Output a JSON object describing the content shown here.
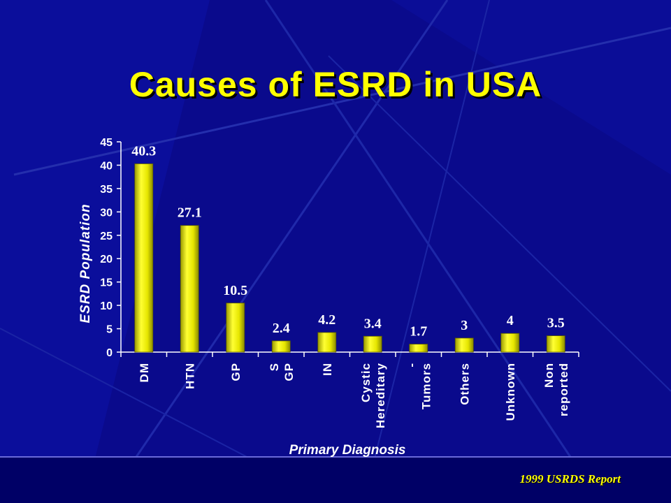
{
  "slide": {
    "title": "Causes of ESRD in USA",
    "source": "1999 USRDS Report"
  },
  "colors": {
    "background": "#0a0a8c",
    "bar": "#f2f200",
    "text": "#ffffff",
    "title": "#ffff00"
  },
  "chart_data": {
    "type": "bar",
    "xlabel": "Primary Diagnosis",
    "ylabel": "ESRD Population",
    "ylim": [
      0,
      45
    ],
    "yticks": [
      0,
      5,
      10,
      15,
      20,
      25,
      30,
      35,
      40,
      45
    ],
    "grid": false,
    "categories": [
      {
        "lines": [
          "DM"
        ]
      },
      {
        "lines": [
          "HTN"
        ]
      },
      {
        "lines": [
          "GP"
        ]
      },
      {
        "lines": [
          "S",
          "GP"
        ]
      },
      {
        "lines": [
          "IN"
        ]
      },
      {
        "lines": [
          "Cystic",
          "Hereditary"
        ]
      },
      {
        "lines": [
          "-",
          "Tumors"
        ]
      },
      {
        "lines": [
          "Others"
        ]
      },
      {
        "lines": [
          "Unknown"
        ]
      },
      {
        "lines": [
          "Non",
          "reported"
        ]
      }
    ],
    "values": [
      40.3,
      27.1,
      10.5,
      2.4,
      4.2,
      3.4,
      1.7,
      3,
      4,
      3.5
    ],
    "value_labels": [
      "40.3",
      "27.1",
      "10.5",
      "2.4",
      "4.2",
      "3.4",
      "1.7",
      "3",
      "4",
      "3.5"
    ]
  }
}
